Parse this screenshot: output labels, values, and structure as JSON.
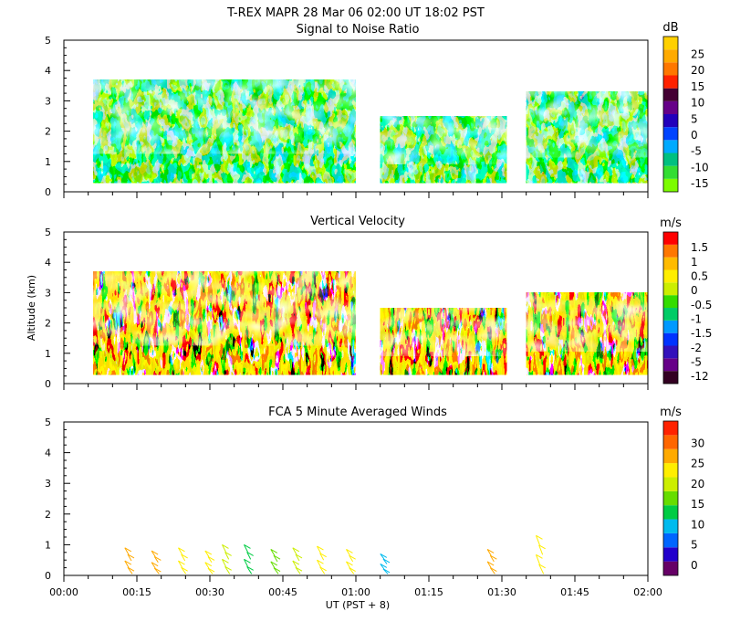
{
  "header": {
    "title": "T-REX   MAPR 28 Mar 06   02:00 UT   18:02   PST"
  },
  "chart_data": [
    {
      "type": "heatmap",
      "title": "Signal to Noise Ratio",
      "ylabel": "",
      "ylim": [
        0,
        5
      ],
      "yticks": [
        "0",
        "1",
        "2",
        "3",
        "4",
        "5"
      ],
      "colorbar": {
        "unit": "dB",
        "labels": [
          "-15",
          "-10",
          "-5",
          "0",
          "5",
          "10",
          "15",
          "20",
          "25"
        ],
        "colors": [
          "#7cfc00",
          "#33dd33",
          "#00c080",
          "#00aaff",
          "#0044ff",
          "#2200bb",
          "#660088",
          "#440033",
          "#ff2200",
          "#ff7700",
          "#ffaa00",
          "#ffd000"
        ]
      },
      "data_gaps_ut": [
        [
          "01:00",
          "01:05"
        ],
        [
          "01:35",
          "01:40"
        ]
      ]
    },
    {
      "type": "heatmap",
      "title": "Vertical Velocity",
      "ylabel": "Altitude (km)",
      "ylim": [
        0,
        5
      ],
      "yticks": [
        "0",
        "1",
        "2",
        "3",
        "4",
        "5"
      ],
      "colorbar": {
        "unit": "m/s",
        "labels": [
          "-12",
          "-5",
          "-2",
          "-1.5",
          "-1",
          "-0.5",
          "0",
          "0.5",
          "1",
          "1.5"
        ],
        "colors": [
          "#330022",
          "#660088",
          "#3311bb",
          "#0033ff",
          "#0099ff",
          "#00cc66",
          "#33dd00",
          "#ccee00",
          "#ffee00",
          "#ffbb00",
          "#ff7700",
          "#ff0000"
        ]
      },
      "data_gaps_ut": [
        [
          "01:00",
          "01:05"
        ],
        [
          "01:35",
          "01:40"
        ]
      ]
    },
    {
      "type": "scatter",
      "title": "FCA 5 Minute Averaged Winds",
      "xlabel": "UT  (PST + 8)",
      "ylabel": "",
      "ylim": [
        0,
        5
      ],
      "yticks": [
        "0",
        "1",
        "2",
        "3",
        "4",
        "5"
      ],
      "xticks": [
        "00:00",
        "00:15",
        "00:30",
        "00:45",
        "01:00",
        "01:15",
        "01:30",
        "01:45",
        "02:00"
      ],
      "xlim_min": [
        0,
        120
      ],
      "colorbar": {
        "unit": "m/s",
        "labels": [
          "0",
          "5",
          "10",
          "15",
          "20",
          "25",
          "30"
        ],
        "colors": [
          "#660066",
          "#2200cc",
          "#0066ff",
          "#00bbee",
          "#00cc44",
          "#66dd00",
          "#ccee00",
          "#ffee00",
          "#ffaa00",
          "#ff6600",
          "#ff2200"
        ]
      },
      "barbs": [
        {
          "t_min": 13.5,
          "top_km": 0.9,
          "speed_ms": 25
        },
        {
          "t_min": 19.0,
          "top_km": 0.8,
          "speed_ms": 24
        },
        {
          "t_min": 24.5,
          "top_km": 0.9,
          "speed_ms": 20
        },
        {
          "t_min": 30.0,
          "top_km": 0.8,
          "speed_ms": 21
        },
        {
          "t_min": 33.5,
          "top_km": 1.0,
          "speed_ms": 19
        },
        {
          "t_min": 38.0,
          "top_km": 1.0,
          "speed_ms": 12
        },
        {
          "t_min": 43.5,
          "top_km": 0.85,
          "speed_ms": 16
        },
        {
          "t_min": 48.0,
          "top_km": 0.9,
          "speed_ms": 18
        },
        {
          "t_min": 53.0,
          "top_km": 0.95,
          "speed_ms": 21
        },
        {
          "t_min": 59.0,
          "top_km": 0.85,
          "speed_ms": 22
        },
        {
          "t_min": 66.0,
          "top_km": 0.7,
          "speed_ms": 8
        },
        {
          "t_min": 88.0,
          "top_km": 0.85,
          "speed_ms": 24
        },
        {
          "t_min": 98.0,
          "top_km": 1.3,
          "speed_ms": 22
        }
      ]
    }
  ]
}
